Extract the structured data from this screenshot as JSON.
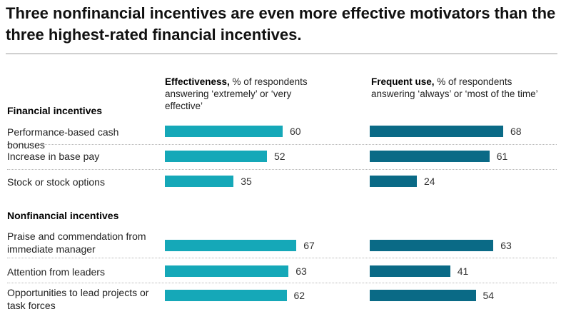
{
  "title": "Three nonfinancial incentives are even more effective motivators than the three highest-rated financial incentives.",
  "columns": {
    "effectiveness": {
      "label_bold": "Effectiveness,",
      "label_rest": " % of respondents answering ‘extremely’ or ‘very effective’"
    },
    "frequent_use": {
      "label_bold": "Frequent use,",
      "label_rest": " % of respondents answering ‘always’ or ‘most of the time’"
    }
  },
  "groups": [
    {
      "label": "Financial incentives"
    },
    {
      "label": "Nonfinancial incentives"
    }
  ],
  "colors": {
    "effectiveness": "#15a8b8",
    "frequent_use": "#0a6a86"
  },
  "chart_data": {
    "type": "bar",
    "orientation": "horizontal",
    "categories": [
      "Performance-based cash bonuses",
      "Increase in base pay",
      "Stock or stock options",
      "Praise and commendation from immediate manager",
      "Attention from leaders",
      "Opportunities to lead projects or task forces"
    ],
    "category_groups": [
      "Financial incentives",
      "Financial incentives",
      "Financial incentives",
      "Nonfinancial incentives",
      "Nonfinancial incentives",
      "Nonfinancial incentives"
    ],
    "series": [
      {
        "name": "Effectiveness",
        "values": [
          60,
          52,
          35,
          67,
          63,
          62
        ]
      },
      {
        "name": "Frequent use",
        "values": [
          68,
          61,
          24,
          63,
          41,
          54
        ]
      }
    ],
    "xlim": [
      0,
      100
    ],
    "grid": false,
    "data_labels": true
  }
}
